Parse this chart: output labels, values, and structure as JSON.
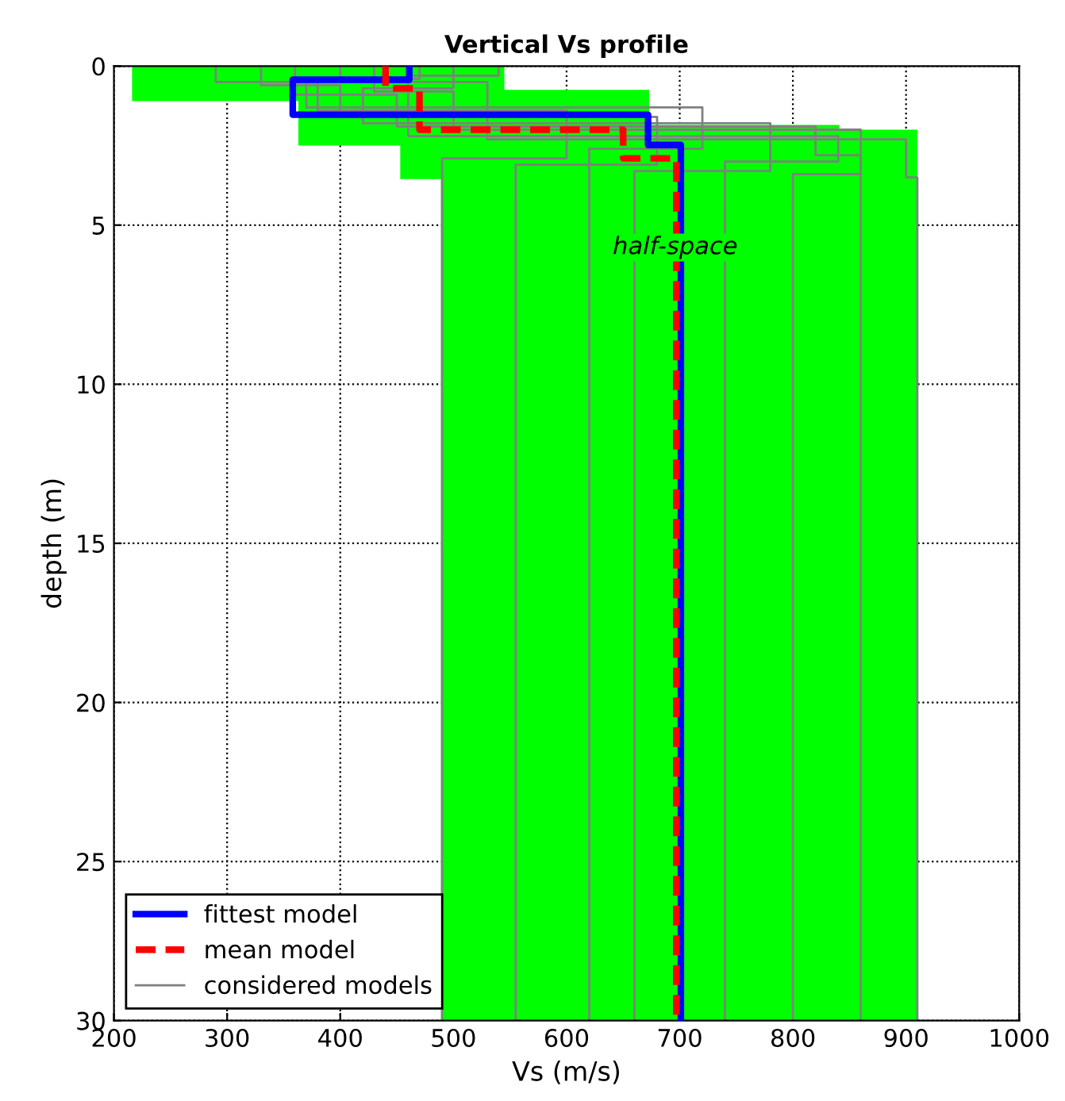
{
  "chart_data": {
    "type": "line",
    "title": "Vertical Vs profile",
    "xlabel": "Vs (m/s)",
    "ylabel": "depth (m)",
    "xlim": [
      200,
      1000
    ],
    "xticks": [
      200,
      300,
      400,
      500,
      600,
      700,
      800,
      900,
      1000
    ],
    "ylim": [
      30,
      0
    ],
    "yticks": [
      0,
      5,
      10,
      15,
      20,
      25,
      30
    ],
    "grid": true,
    "legend": "bottom left",
    "annotations": [
      "half-space"
    ],
    "series": [
      {
        "type": "area",
        "color": "#00ff00",
        "x": [
          216,
          545,
          545,
          673,
          673,
          841,
          841,
          910,
          910,
          489,
          489,
          453,
          453,
          363,
          363,
          216,
          216
        ],
        "values": [
          0,
          0,
          0.75,
          0.75,
          1.85,
          1.85,
          2.0,
          2.0,
          30,
          30,
          3.55,
          3.55,
          2.5,
          2.5,
          1.1,
          1.1,
          0
        ]
      },
      {
        "name": "considered models",
        "color": "#808080",
        "x": [
          290,
          290,
          380,
          380,
          600,
          600,
          490,
          490
        ],
        "values": [
          0,
          0.5,
          0.5,
          1.4,
          1.4,
          2.9,
          2.9,
          30
        ]
      },
      {
        "color": "#808080",
        "x": [
          330,
          330,
          400,
          400,
          680,
          680,
          555,
          555
        ],
        "values": [
          0,
          0.6,
          0.6,
          1.6,
          1.6,
          3.1,
          3.1,
          30
        ]
      },
      {
        "color": "#808080",
        "x": [
          470,
          470,
          370,
          370,
          720,
          720,
          620,
          620
        ],
        "values": [
          0,
          0.4,
          0.4,
          1.3,
          1.3,
          2.6,
          2.6,
          30
        ]
      },
      {
        "color": "#808080",
        "x": [
          500,
          500,
          420,
          420,
          780,
          780,
          660,
          660
        ],
        "values": [
          0,
          0.7,
          0.7,
          1.8,
          1.8,
          3.3,
          3.3,
          30
        ]
      },
      {
        "color": "#808080",
        "x": [
          540,
          540,
          460,
          460,
          840,
          840,
          740,
          740
        ],
        "values": [
          0,
          0.3,
          0.3,
          2.2,
          2.2,
          3.0,
          3.0,
          30
        ]
      },
      {
        "color": "#808080",
        "x": [
          430,
          430,
          500,
          500,
          860,
          860,
          800,
          800
        ],
        "values": [
          0,
          0.8,
          0.8,
          2.0,
          2.0,
          3.4,
          3.4,
          30
        ]
      },
      {
        "color": "#808080",
        "x": [
          360,
          360,
          450,
          450,
          820,
          820,
          860,
          860
        ],
        "values": [
          0,
          0.9,
          0.9,
          1.9,
          1.9,
          2.8,
          2.8,
          30
        ]
      },
      {
        "color": "#808080",
        "x": [
          400,
          400,
          530,
          530,
          900,
          900,
          910,
          910
        ],
        "values": [
          0,
          0.5,
          0.5,
          2.3,
          2.3,
          3.5,
          3.5,
          30
        ]
      },
      {
        "name": "fittest model",
        "color": "#0000ff",
        "line_style": "solid",
        "x": [
          461,
          461,
          358,
          358,
          672,
          672,
          701,
          701
        ],
        "values": [
          0,
          0.43,
          0.43,
          1.53,
          1.53,
          2.48,
          2.48,
          30
        ]
      },
      {
        "name": "mean model",
        "color": "#ff0000",
        "line_style": "dashed",
        "x": [
          440,
          440,
          470,
          470,
          650,
          650,
          697,
          697
        ],
        "values": [
          0,
          0.7,
          0.7,
          2.0,
          2.0,
          2.9,
          2.9,
          30
        ]
      }
    ]
  }
}
